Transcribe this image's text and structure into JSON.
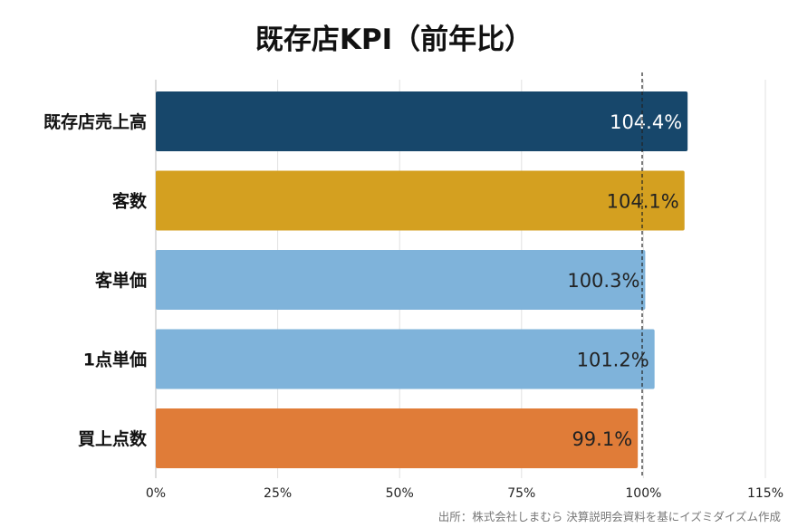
{
  "chart_data": {
    "type": "bar",
    "orientation": "horizontal",
    "title": "既存店KPI（前年比）",
    "categories": [
      "既存店売上高",
      "客数",
      "客単価",
      "1点単価",
      "買上点数"
    ],
    "values": [
      104.4,
      104.1,
      100.3,
      101.2,
      99.1
    ],
    "value_labels": [
      "104.4%",
      "104.1%",
      "100.3%",
      "101.2%",
      "99.1%"
    ],
    "colors": [
      "#17476b",
      "#d4a020",
      "#7fb3da",
      "#7fb3da",
      "#e07c38"
    ],
    "label_colors": [
      "#ffffff",
      "#222222",
      "#222222",
      "#222222",
      "#222222"
    ],
    "x_ticks": [
      "0%",
      "25%",
      "50%",
      "75%",
      "100%",
      "115%"
    ],
    "reference_line": 100,
    "grid": true,
    "source": "出所：株式会社しまむら 決算説明会資料を基にイズミダイズム作成"
  }
}
